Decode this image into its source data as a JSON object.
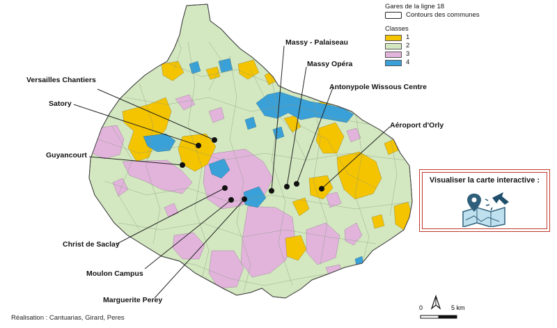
{
  "legend": {
    "title": "Gares de la ligne 18",
    "contour_label": "Contours des communes",
    "classes_title": "Classes",
    "classes": [
      {
        "label": "1",
        "color": "#f5c400"
      },
      {
        "label": "2",
        "color": "#d3e8c0"
      },
      {
        "label": "3",
        "color": "#e2b4dc"
      },
      {
        "label": "4",
        "color": "#3aa0d8"
      }
    ]
  },
  "stations": [
    {
      "name": "Massy - Palaiseau"
    },
    {
      "name": "Massy Opéra"
    },
    {
      "name": "Antonypole Wissous Centre"
    },
    {
      "name": "Aéroport d'Orly"
    },
    {
      "name": "Versailles Chantiers"
    },
    {
      "name": "Satory"
    },
    {
      "name": "Guyancourt"
    },
    {
      "name": "Christ de Saclay"
    },
    {
      "name": "Moulon Campus"
    },
    {
      "name": "Marguerite Perey"
    }
  ],
  "interactive": {
    "title": "Visualiser la carte interactive :",
    "icon": "interactive-map-icon"
  },
  "credit": "Réalisation : Cantuarias, Girard, Peres",
  "scale": {
    "zero": "0",
    "end": "5 km"
  },
  "north_icon": "north-arrow-icon"
}
